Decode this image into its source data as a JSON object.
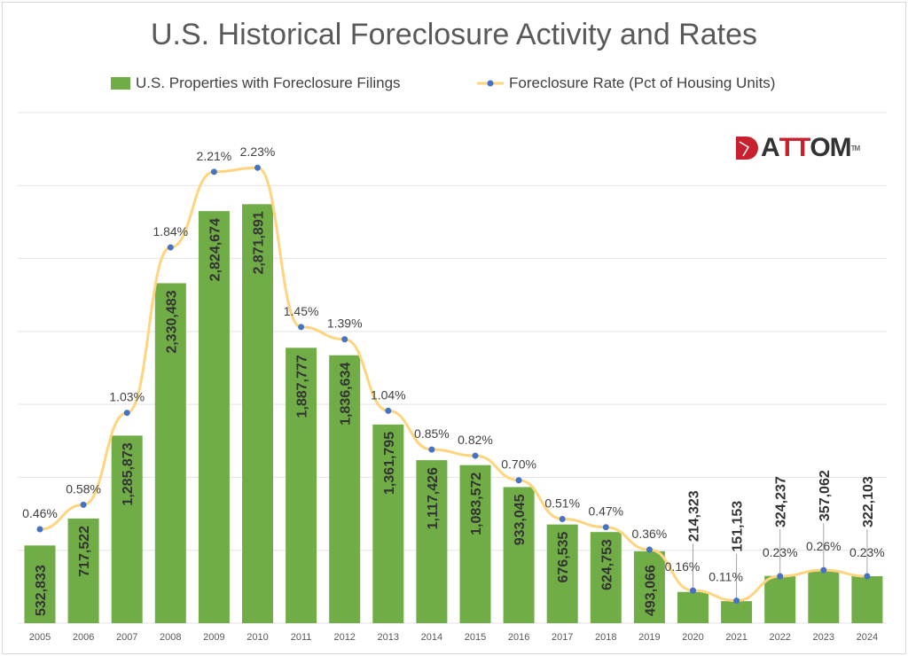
{
  "chart_data": {
    "type": "bar+line",
    "title": "U.S. Historical Foreclosure Activity and Rates",
    "categories": [
      "2005",
      "2006",
      "2007",
      "2008",
      "2009",
      "2010",
      "2011",
      "2012",
      "2013",
      "2014",
      "2015",
      "2016",
      "2017",
      "2018",
      "2019",
      "2020",
      "2021",
      "2022",
      "2023",
      "2024"
    ],
    "series": [
      {
        "name": "U.S. Properties with Foreclosure Filings",
        "type": "bar",
        "color": "#70ad47",
        "axis": "primary",
        "values": [
          532833,
          717522,
          1285873,
          2330483,
          2824674,
          2871891,
          1887777,
          1836634,
          1361795,
          1117426,
          1083572,
          933045,
          676535,
          624753,
          493066,
          214323,
          151153,
          324237,
          357062,
          322103
        ],
        "labels": [
          "532,833",
          "717,522",
          "1,285,873",
          "2,330,483",
          "2,824,674",
          "2,871,891",
          "1,887,777",
          "1,836,634",
          "1,361,795",
          "1,117,426",
          "1,083,572",
          "933,045",
          "676,535",
          "624,753",
          "493,066",
          "214,323",
          "151,153",
          "324,237",
          "357,062",
          "322,103"
        ]
      },
      {
        "name": "Foreclosure Rate (Pct of Housing Units)",
        "type": "line",
        "color": "#ffd47f",
        "marker_color": "#4472c4",
        "axis": "secondary",
        "values": [
          0.46,
          0.58,
          1.03,
          1.84,
          2.21,
          2.23,
          1.45,
          1.39,
          1.04,
          0.85,
          0.82,
          0.7,
          0.51,
          0.47,
          0.36,
          0.16,
          0.11,
          0.23,
          0.26,
          0.23
        ],
        "labels": [
          "0.46%",
          "0.58%",
          "1.03%",
          "1.84%",
          "2.21%",
          "2.23%",
          "1.45%",
          "1.39%",
          "1.04%",
          "0.85%",
          "0.82%",
          "0.70%",
          "0.51%",
          "0.47%",
          "0.36%",
          "0.16%",
          "0.11%",
          "0.23%",
          "0.26%",
          "0.23%"
        ]
      }
    ],
    "ylim": [
      0,
      3500000
    ],
    "y2lim": [
      0,
      2.5
    ],
    "grid": true,
    "legend": "top",
    "logo": "ATTOM"
  }
}
